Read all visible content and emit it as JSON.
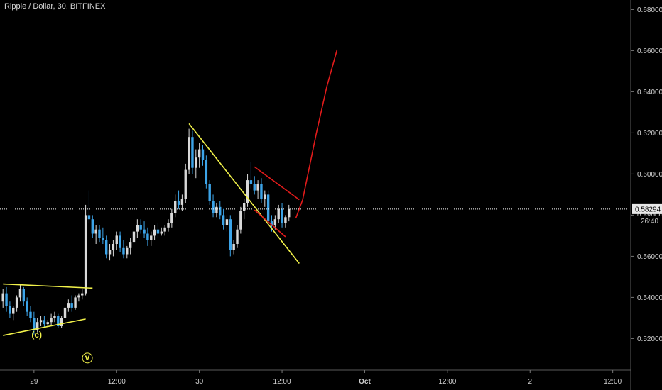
{
  "chart_data": {
    "type": "candlestick",
    "title": "Ripple / Dollar, 30, BITFINEX",
    "xlabel": "",
    "ylabel": "",
    "ylim": [
      0.506,
      0.684
    ],
    "y_ticks": [
      "0.52000",
      "0.54000",
      "0.56000",
      "0.58000",
      "0.60000",
      "0.62000",
      "0.64000",
      "0.66000",
      "0.68000"
    ],
    "x_ticks": [
      {
        "label": "29",
        "t": 1
      },
      {
        "label": "12:00",
        "t": 25
      },
      {
        "label": "30",
        "t": 49
      },
      {
        "label": "12:00",
        "t": 73
      },
      {
        "label": "Oct",
        "t": 97
      },
      {
        "label": "12:00",
        "t": 121
      },
      {
        "label": "2",
        "t": 145
      },
      {
        "label": "12:00",
        "t": 169
      }
    ],
    "current_price": {
      "label": "0.58294",
      "value": 0.58294,
      "countdown": "26:40"
    },
    "colors": {
      "background": "#000000",
      "up": "#d9d9d9",
      "down": "#3ca4e8",
      "grid_text": "#cfcfcf",
      "yellow": "#f2f24a",
      "red": "#e21b1b",
      "price_line": "#ffffff",
      "badge": "#e8e8e8",
      "label": "#f2f24a"
    },
    "candles": [
      [
        -8,
        0.538,
        0.544,
        0.535,
        0.542
      ],
      [
        -7,
        0.542,
        0.545,
        0.533,
        0.536
      ],
      [
        -6,
        0.536,
        0.538,
        0.53,
        0.532
      ],
      [
        -5,
        0.532,
        0.536,
        0.529,
        0.535
      ],
      [
        -4,
        0.535,
        0.541,
        0.533,
        0.54
      ],
      [
        -3,
        0.54,
        0.546,
        0.538,
        0.544
      ],
      [
        -2,
        0.544,
        0.545,
        0.536,
        0.538
      ],
      [
        -1,
        0.538,
        0.54,
        0.531,
        0.533
      ],
      [
        0,
        0.533,
        0.536,
        0.528,
        0.53
      ],
      [
        1,
        0.53,
        0.533,
        0.522,
        0.524
      ],
      [
        2,
        0.524,
        0.53,
        0.523,
        0.528
      ],
      [
        3,
        0.528,
        0.531,
        0.526,
        0.529
      ],
      [
        4,
        0.529,
        0.531,
        0.525,
        0.527
      ],
      [
        5,
        0.527,
        0.529,
        0.526,
        0.528
      ],
      [
        6,
        0.528,
        0.532,
        0.526,
        0.53
      ],
      [
        7,
        0.53,
        0.533,
        0.528,
        0.531
      ],
      [
        8,
        0.531,
        0.532,
        0.525,
        0.526
      ],
      [
        9,
        0.526,
        0.531,
        0.525,
        0.53
      ],
      [
        10,
        0.53,
        0.536,
        0.528,
        0.535
      ],
      [
        11,
        0.535,
        0.539,
        0.533,
        0.537
      ],
      [
        12,
        0.537,
        0.541,
        0.533,
        0.535
      ],
      [
        13,
        0.535,
        0.541,
        0.534,
        0.54
      ],
      [
        14,
        0.54,
        0.542,
        0.538,
        0.541
      ],
      [
        15,
        0.541,
        0.544,
        0.539,
        0.542
      ],
      [
        16,
        0.542,
        0.585,
        0.541,
        0.58
      ],
      [
        17,
        0.58,
        0.592,
        0.576,
        0.578
      ],
      [
        18,
        0.578,
        0.58,
        0.569,
        0.571
      ],
      [
        19,
        0.571,
        0.575,
        0.566,
        0.573
      ],
      [
        20,
        0.573,
        0.575,
        0.567,
        0.569
      ],
      [
        21,
        0.569,
        0.574,
        0.566,
        0.568
      ],
      [
        22,
        0.568,
        0.57,
        0.559,
        0.561
      ],
      [
        23,
        0.561,
        0.566,
        0.558,
        0.563
      ],
      [
        24,
        0.563,
        0.568,
        0.56,
        0.566
      ],
      [
        25,
        0.566,
        0.572,
        0.563,
        0.57
      ],
      [
        26,
        0.57,
        0.572,
        0.562,
        0.564
      ],
      [
        27,
        0.564,
        0.568,
        0.559,
        0.561
      ],
      [
        28,
        0.561,
        0.565,
        0.559,
        0.564
      ],
      [
        29,
        0.564,
        0.569,
        0.561,
        0.567
      ],
      [
        30,
        0.567,
        0.575,
        0.565,
        0.572
      ],
      [
        31,
        0.572,
        0.578,
        0.569,
        0.575
      ],
      [
        32,
        0.575,
        0.578,
        0.571,
        0.573
      ],
      [
        33,
        0.573,
        0.577,
        0.569,
        0.571
      ],
      [
        34,
        0.571,
        0.574,
        0.565,
        0.568
      ],
      [
        35,
        0.568,
        0.572,
        0.565,
        0.57
      ],
      [
        36,
        0.57,
        0.575,
        0.568,
        0.573
      ],
      [
        37,
        0.573,
        0.576,
        0.569,
        0.571
      ],
      [
        38,
        0.571,
        0.574,
        0.57,
        0.572
      ],
      [
        39,
        0.572,
        0.575,
        0.57,
        0.574
      ],
      [
        40,
        0.574,
        0.578,
        0.572,
        0.576
      ],
      [
        41,
        0.576,
        0.583,
        0.574,
        0.581
      ],
      [
        42,
        0.581,
        0.59,
        0.579,
        0.587
      ],
      [
        43,
        0.587,
        0.592,
        0.583,
        0.585
      ],
      [
        44,
        0.585,
        0.59,
        0.582,
        0.588
      ],
      [
        45,
        0.588,
        0.605,
        0.586,
        0.602
      ],
      [
        46,
        0.602,
        0.622,
        0.6,
        0.618
      ],
      [
        47,
        0.618,
        0.621,
        0.6,
        0.603
      ],
      [
        48,
        0.603,
        0.612,
        0.598,
        0.608
      ],
      [
        49,
        0.608,
        0.615,
        0.603,
        0.612
      ],
      [
        50,
        0.612,
        0.614,
        0.604,
        0.607
      ],
      [
        51,
        0.607,
        0.609,
        0.593,
        0.595
      ],
      [
        52,
        0.595,
        0.597,
        0.585,
        0.587
      ],
      [
        53,
        0.587,
        0.59,
        0.579,
        0.581
      ],
      [
        54,
        0.581,
        0.586,
        0.579,
        0.584
      ],
      [
        55,
        0.584,
        0.587,
        0.578,
        0.58
      ],
      [
        56,
        0.58,
        0.583,
        0.573,
        0.575
      ],
      [
        57,
        0.575,
        0.58,
        0.572,
        0.578
      ],
      [
        58,
        0.578,
        0.58,
        0.56,
        0.563
      ],
      [
        59,
        0.563,
        0.568,
        0.561,
        0.566
      ],
      [
        60,
        0.566,
        0.575,
        0.564,
        0.573
      ],
      [
        61,
        0.573,
        0.584,
        0.571,
        0.582
      ],
      [
        62,
        0.582,
        0.588,
        0.578,
        0.586
      ],
      [
        63,
        0.586,
        0.6,
        0.584,
        0.597
      ],
      [
        64,
        0.597,
        0.606,
        0.593,
        0.595
      ],
      [
        65,
        0.595,
        0.599,
        0.59,
        0.592
      ],
      [
        66,
        0.592,
        0.597,
        0.588,
        0.595
      ],
      [
        67,
        0.595,
        0.598,
        0.586,
        0.588
      ],
      [
        68,
        0.588,
        0.592,
        0.584,
        0.59
      ],
      [
        69,
        0.59,
        0.592,
        0.575,
        0.577
      ],
      [
        70,
        0.577,
        0.58,
        0.572,
        0.575
      ],
      [
        71,
        0.575,
        0.58,
        0.573,
        0.578
      ],
      [
        72,
        0.578,
        0.585,
        0.576,
        0.583
      ],
      [
        73,
        0.583,
        0.586,
        0.574,
        0.576
      ],
      [
        74,
        0.576,
        0.58,
        0.574,
        0.579
      ],
      [
        75,
        0.579,
        0.585,
        0.577,
        0.583
      ]
    ],
    "drawings": [
      {
        "color": "yellow",
        "from": [
          -8,
          0.5465
        ],
        "to": [
          18,
          0.5445
        ]
      },
      {
        "color": "yellow",
        "from": [
          -8,
          0.5215
        ],
        "to": [
          16,
          0.5295
        ]
      },
      {
        "color": "yellow",
        "from": [
          46,
          0.6245
        ],
        "to": [
          78,
          0.5565
        ]
      },
      {
        "color": "red",
        "from": [
          65,
          0.6035
        ],
        "to": [
          78,
          0.5875
        ]
      },
      {
        "color": "red",
        "from": [
          65,
          0.5825
        ],
        "to": [
          74,
          0.5695
        ]
      },
      {
        "color": "red",
        "from": [
          77,
          0.5785
        ],
        "to": [
          79,
          0.5875
        ]
      },
      {
        "color": "red",
        "path": [
          [
            79,
            0.5875
          ],
          [
            83,
            0.62
          ],
          [
            86,
            0.6425
          ],
          [
            89,
            0.6605
          ]
        ]
      }
    ],
    "annotations": [
      {
        "text": "(e)",
        "t": 1.8,
        "y": 0.5205,
        "color": "yellow"
      },
      {
        "text": "v",
        "t": 16.5,
        "y": 0.5095,
        "color": "yellow",
        "circled": true
      }
    ]
  }
}
